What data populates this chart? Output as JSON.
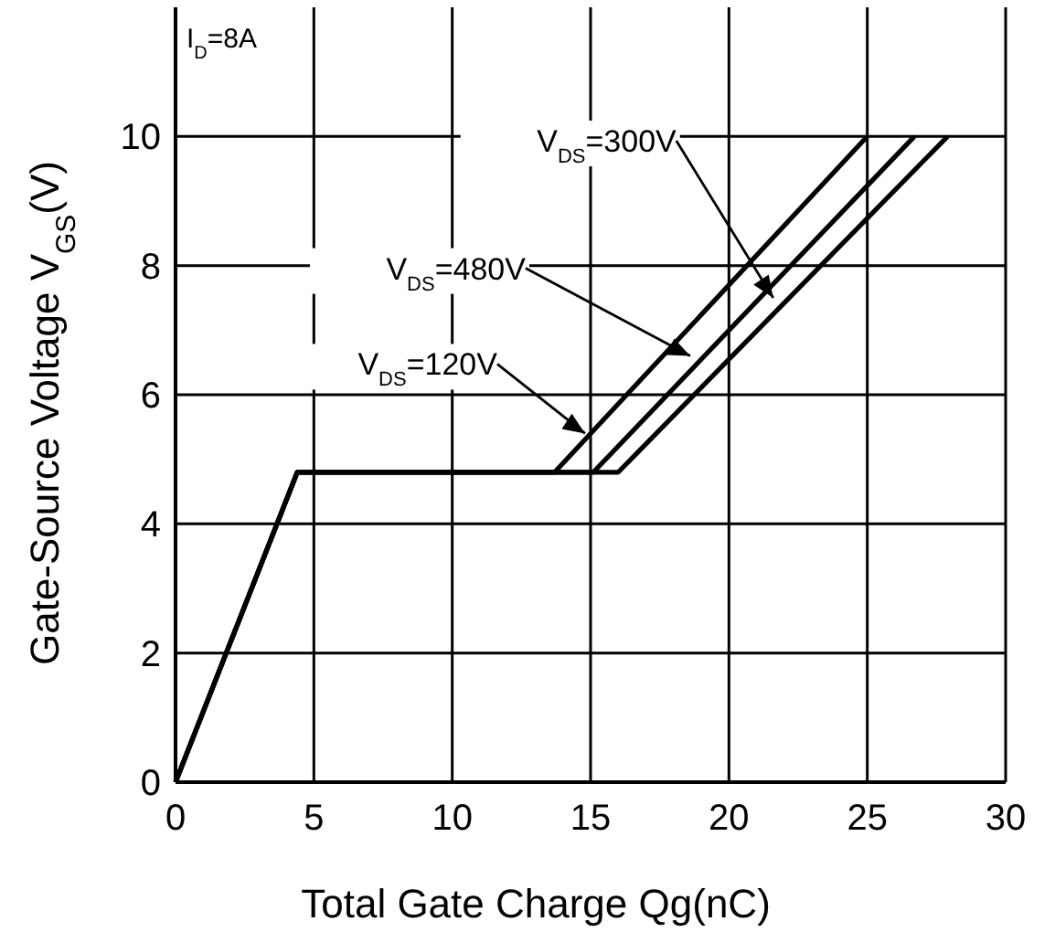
{
  "chart_data": {
    "type": "line",
    "xlabel": "Total Gate Charge Qg(nC)",
    "ylabel": "Gate-Source Voltage V$_{GS}$(V)",
    "xlim": [
      0,
      30
    ],
    "ylim": [
      0,
      12
    ],
    "xticks": [
      0,
      5,
      10,
      15,
      20,
      25,
      30
    ],
    "yticks": [
      0,
      2,
      4,
      6,
      8,
      10
    ],
    "grid": true,
    "marker": "none",
    "line_style": "solid",
    "series": [
      {
        "color": "#000000",
        "x": [
          0,
          4.4,
          13.7,
          25.0
        ],
        "values": [
          0,
          4.8,
          4.8,
          10
        ]
      },
      {
        "color": "#000000",
        "x": [
          0,
          4.4,
          15.1,
          26.7
        ],
        "values": [
          0,
          4.8,
          4.8,
          10
        ]
      },
      {
        "color": "#000000",
        "x": [
          0,
          4.4,
          16.0,
          27.9
        ],
        "values": [
          0,
          4.8,
          4.8,
          10
        ]
      }
    ],
    "annotations": [
      "I$_{D}$=8A",
      {
        "text": "V$_{DS}$=120V",
        "x": 14.8,
        "y": 5.4
      },
      {
        "text": "V$_{DS}$=480V",
        "x": 18.6,
        "y": 6.6
      },
      {
        "text": "V$_{DS}$=300V",
        "x": 21.6,
        "y": 7.5
      }
    ]
  }
}
